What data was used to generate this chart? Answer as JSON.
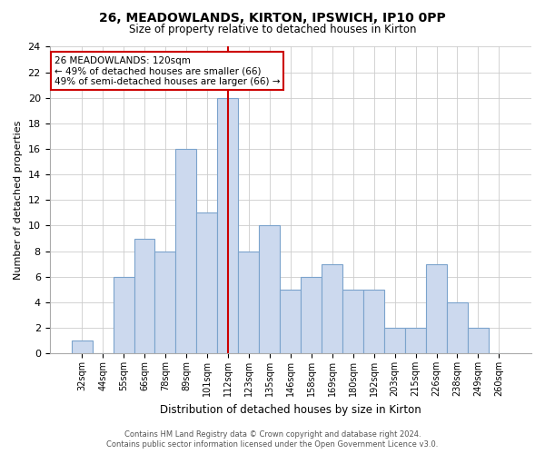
{
  "title": "26, MEADOWLANDS, KIRTON, IPSWICH, IP10 0PP",
  "subtitle": "Size of property relative to detached houses in Kirton",
  "xlabel": "Distribution of detached houses by size in Kirton",
  "ylabel": "Number of detached properties",
  "bar_labels": [
    "32sqm",
    "44sqm",
    "55sqm",
    "66sqm",
    "78sqm",
    "89sqm",
    "101sqm",
    "112sqm",
    "123sqm",
    "135sqm",
    "146sqm",
    "158sqm",
    "169sqm",
    "180sqm",
    "192sqm",
    "203sqm",
    "215sqm",
    "226sqm",
    "238sqm",
    "249sqm",
    "260sqm"
  ],
  "bar_values": [
    1,
    0,
    6,
    9,
    8,
    16,
    11,
    20,
    8,
    10,
    5,
    6,
    7,
    5,
    5,
    2,
    2,
    7,
    4,
    2,
    0
  ],
  "bar_color": "#ccd9ee",
  "bar_edge_color": "#7ba3cc",
  "highlight_bar_index": 7,
  "highlight_line_color": "#cc0000",
  "ylim": [
    0,
    24
  ],
  "yticks": [
    0,
    2,
    4,
    6,
    8,
    10,
    12,
    14,
    16,
    18,
    20,
    22,
    24
  ],
  "annotation_title": "26 MEADOWLANDS: 120sqm",
  "annotation_line1": "← 49% of detached houses are smaller (66)",
  "annotation_line2": "49% of semi-detached houses are larger (66) →",
  "annotation_box_edge": "#cc0000",
  "annotation_box_face": "#ffffff",
  "footer_line1": "Contains HM Land Registry data © Crown copyright and database right 2024.",
  "footer_line2": "Contains public sector information licensed under the Open Government Licence v3.0.",
  "background_color": "#ffffff",
  "grid_color": "#cccccc"
}
